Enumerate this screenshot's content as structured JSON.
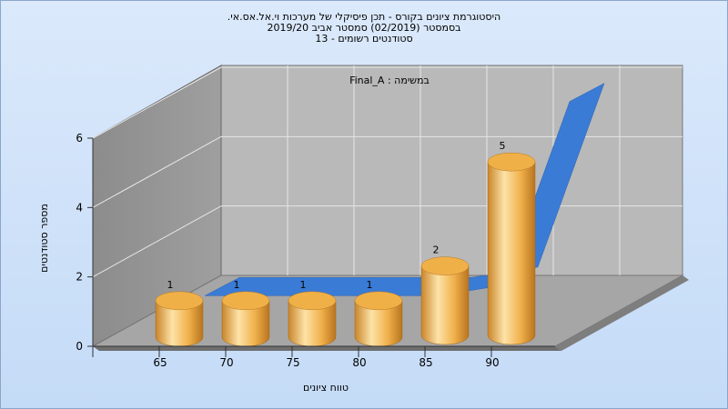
{
  "chart_data": {
    "type": "bar",
    "title_lines": [
      "היסטוגרמת ציונים בקורס - תכן פיסיקלי של מערכות וי.אל.אס.אי.",
      "בסמסטר  (02/2019)  סמסטר אביב 2019/20",
      "סטודנטים רשומים - 13"
    ],
    "subtitle": "במשימה : Final_A",
    "xlabel": "טווח ציונים",
    "ylabel": "מספר סטודנטים",
    "categories": [
      "65",
      "70",
      "75",
      "80",
      "85",
      "90"
    ],
    "values": [
      1,
      1,
      1,
      1,
      2,
      5
    ],
    "value_labels": [
      "1",
      "1",
      "1",
      "1",
      "2",
      "5"
    ],
    "yticks": [
      "0",
      "2",
      "4",
      "6"
    ],
    "ylim": [
      0,
      6
    ],
    "area_series_values": [
      0.2,
      0.2,
      0.2,
      0.2,
      0.5,
      5.8
    ],
    "bar_color": "#f2b550",
    "area_color": "#3a7bd5",
    "grid": true
  }
}
